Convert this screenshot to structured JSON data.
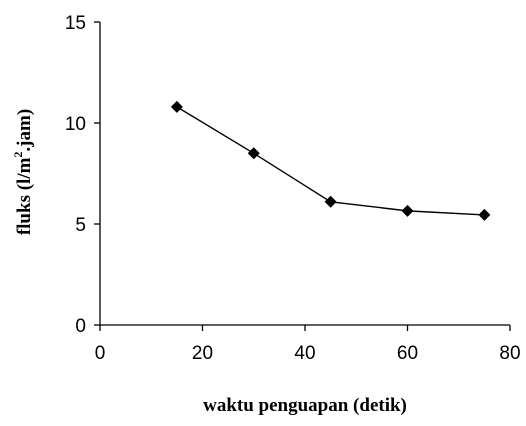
{
  "chart_data": {
    "type": "line",
    "x": [
      15,
      30,
      45,
      60,
      75
    ],
    "series": [
      {
        "values": [
          10.8,
          8.5,
          6.1,
          5.65,
          5.45
        ]
      }
    ],
    "xlabel": "waktu penguapan (detik)",
    "ylabel_parts": {
      "main": "fluks (l/m",
      "sup": "2",
      "end": ".jam)"
    },
    "xlim": [
      0,
      80
    ],
    "ylim": [
      0,
      15
    ],
    "xticks": [
      "0",
      "20",
      "40",
      "60",
      "80"
    ],
    "yticks": [
      "0",
      "5",
      "10",
      "15"
    ],
    "grid": false,
    "marker": "diamond",
    "line_color": "#000000",
    "marker_color": "#000000"
  }
}
